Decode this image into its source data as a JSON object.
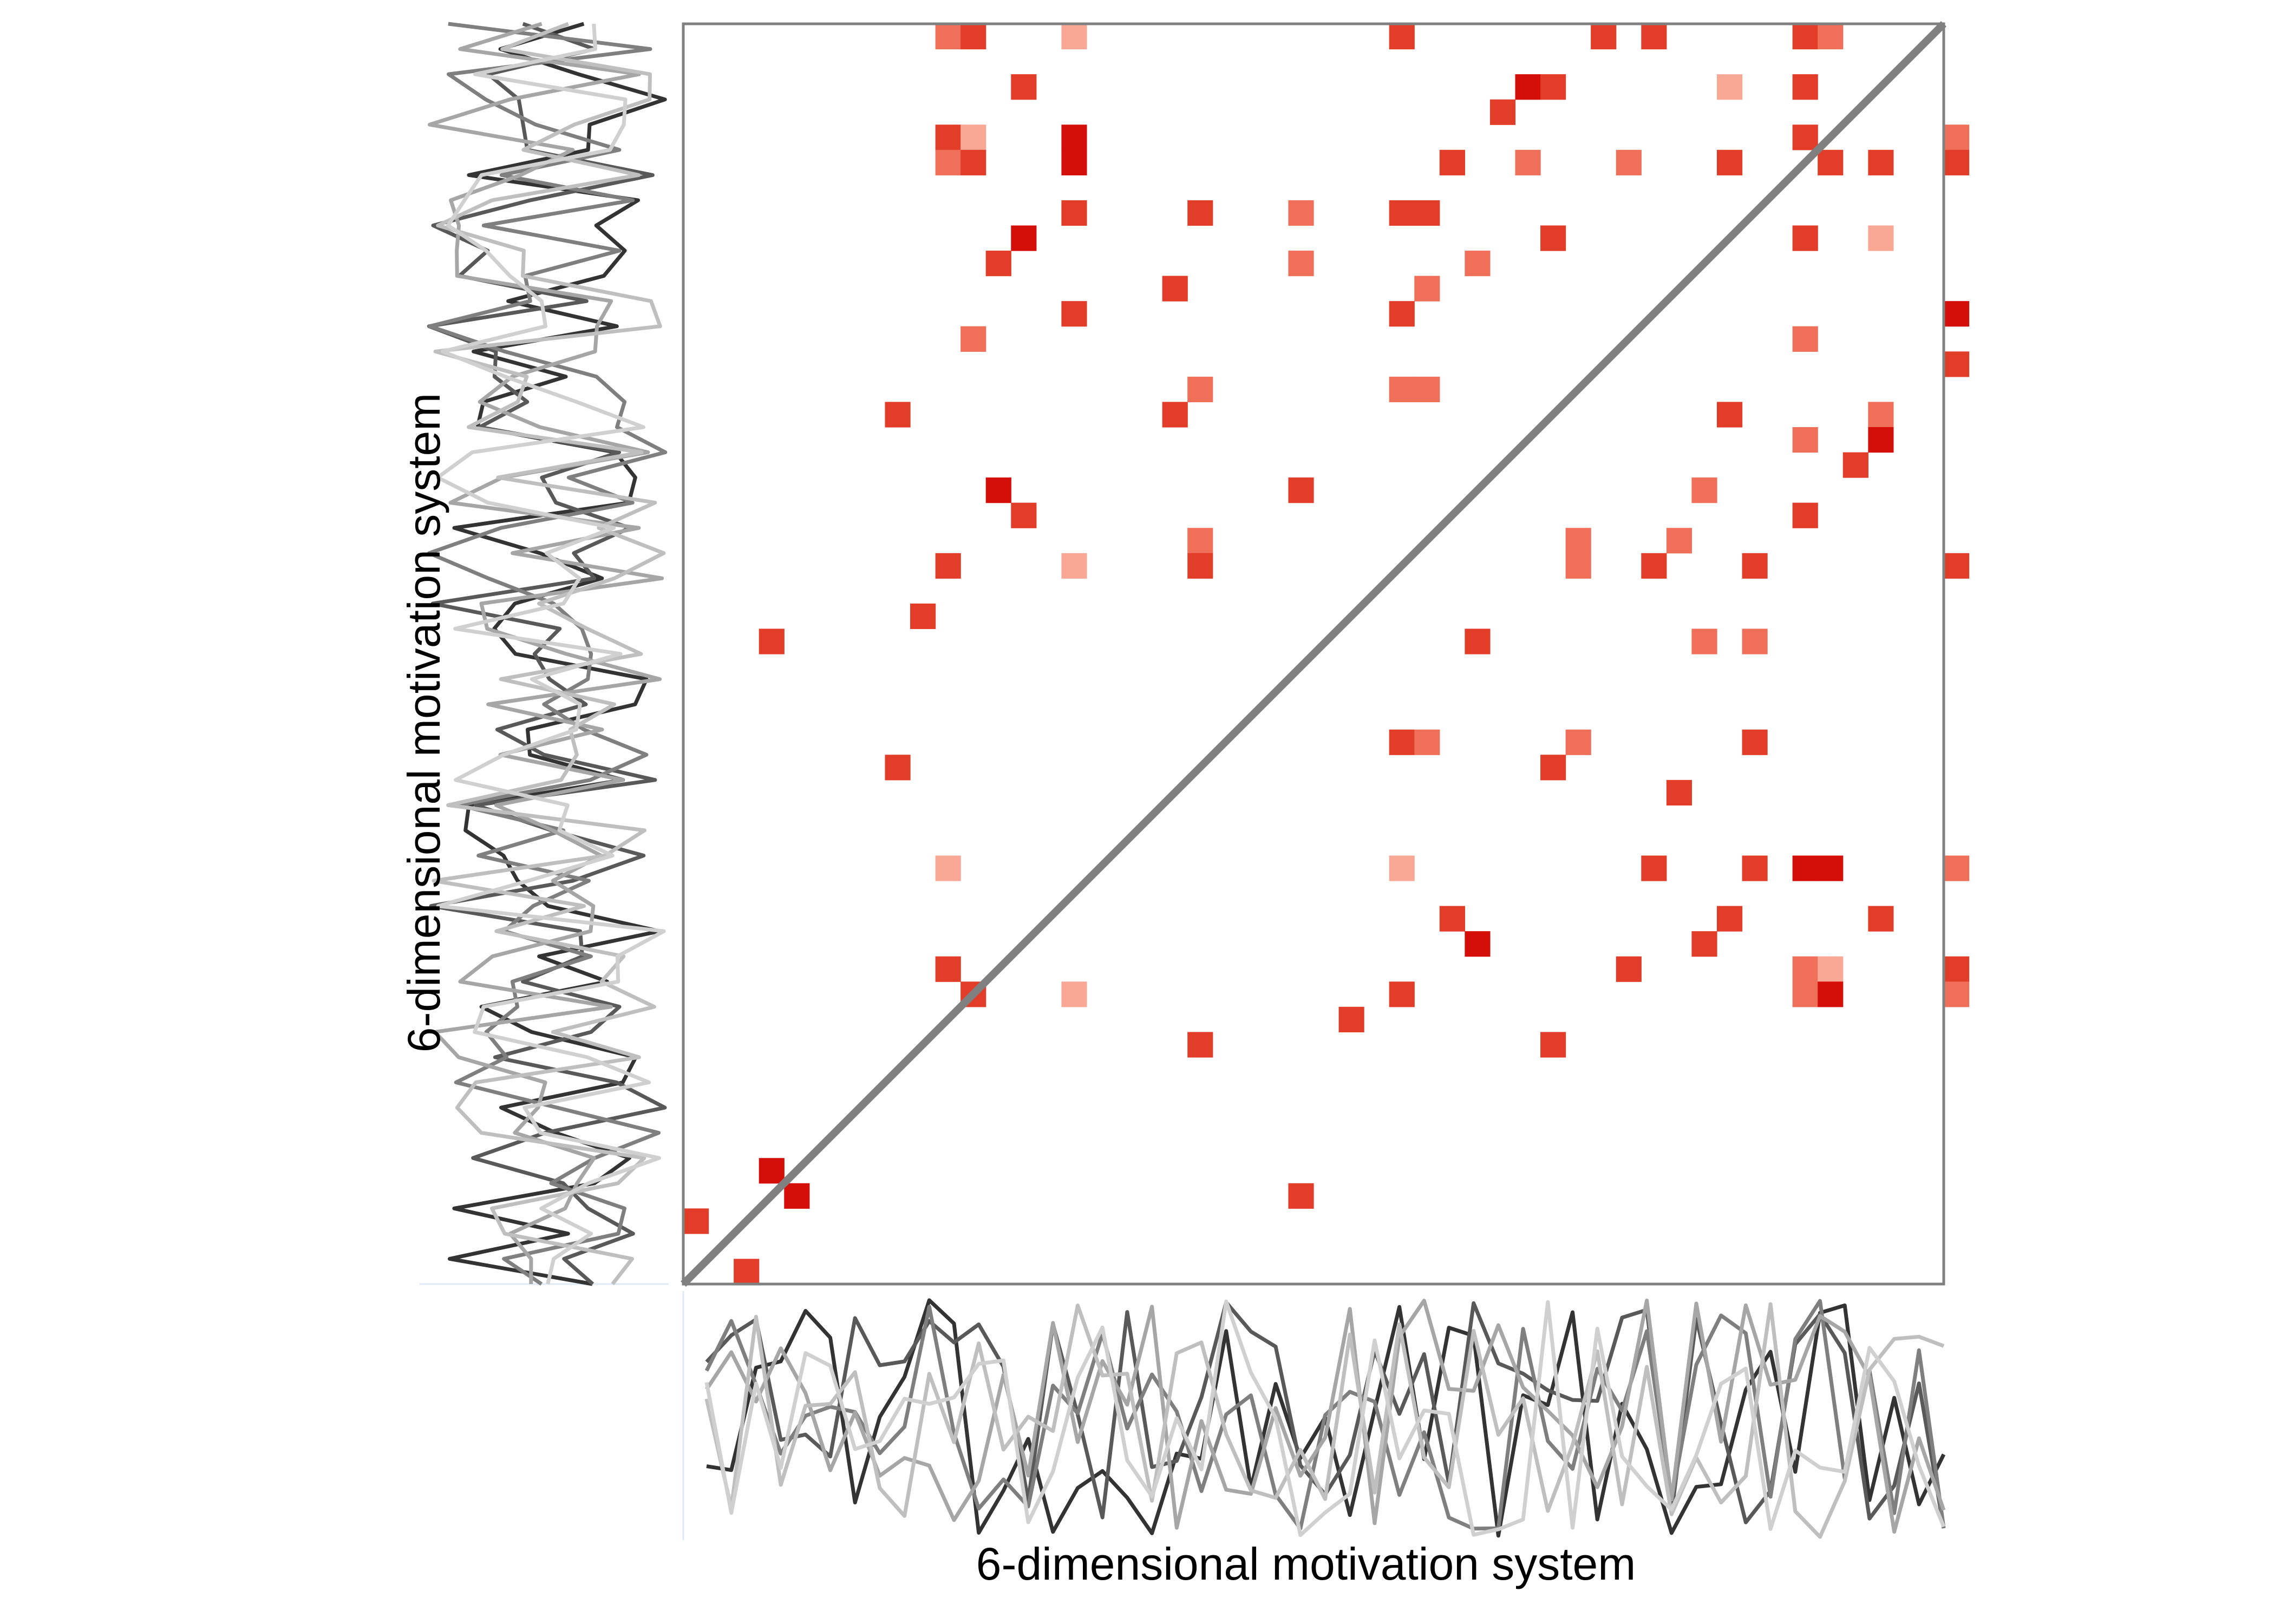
{
  "chart_data": {
    "type": "heatmap",
    "title": "",
    "xlabel": "6-dimensional motivation system",
    "ylabel": "6-dimensional motivation system",
    "grid_size": 50,
    "diagonal_line": true,
    "colors": {
      "diagonal": "#808080",
      "frame": "#808080",
      "cell_scale": [
        "#f9a896",
        "#ef6f58",
        "#e23d29",
        "#d40f0a"
      ],
      "trace_shades": [
        "#333333",
        "#595959",
        "#7f7f7f",
        "#a6a6a6",
        "#bfbfbf",
        "#d0d0d0"
      ]
    },
    "cells": [
      [
        10,
        0,
        2
      ],
      [
        11,
        0,
        3
      ],
      [
        15,
        0,
        1
      ],
      [
        28,
        0,
        3
      ],
      [
        36,
        0,
        3
      ],
      [
        38,
        0,
        3
      ],
      [
        44,
        0,
        3
      ],
      [
        45,
        0,
        2
      ],
      [
        13,
        2,
        3
      ],
      [
        33,
        2,
        4
      ],
      [
        34,
        2,
        3
      ],
      [
        41,
        2,
        1
      ],
      [
        44,
        2,
        3
      ],
      [
        32,
        3,
        3
      ],
      [
        10,
        4,
        3
      ],
      [
        11,
        4,
        1
      ],
      [
        15,
        4,
        4
      ],
      [
        44,
        4,
        3
      ],
      [
        50,
        4,
        2
      ],
      [
        10,
        5,
        2
      ],
      [
        11,
        5,
        3
      ],
      [
        15,
        5,
        4
      ],
      [
        30,
        5,
        3
      ],
      [
        33,
        5,
        2
      ],
      [
        37,
        5,
        2
      ],
      [
        41,
        5,
        3
      ],
      [
        45,
        5,
        3
      ],
      [
        47,
        5,
        3
      ],
      [
        50,
        5,
        3
      ],
      [
        15,
        7,
        3
      ],
      [
        20,
        7,
        3
      ],
      [
        24,
        7,
        2
      ],
      [
        28,
        7,
        3
      ],
      [
        29,
        7,
        3
      ],
      [
        13,
        8,
        4
      ],
      [
        34,
        8,
        3
      ],
      [
        44,
        8,
        3
      ],
      [
        47,
        8,
        1
      ],
      [
        12,
        9,
        3
      ],
      [
        24,
        9,
        2
      ],
      [
        31,
        9,
        2
      ],
      [
        19,
        10,
        3
      ],
      [
        29,
        10,
        2
      ],
      [
        15,
        11,
        3
      ],
      [
        28,
        11,
        3
      ],
      [
        50,
        11,
        4
      ],
      [
        11,
        12,
        2
      ],
      [
        44,
        12,
        2
      ],
      [
        50,
        13,
        3
      ],
      [
        20,
        14,
        2
      ],
      [
        28,
        14,
        2
      ],
      [
        29,
        14,
        2
      ],
      [
        8,
        15,
        3
      ],
      [
        19,
        15,
        3
      ],
      [
        41,
        15,
        3
      ],
      [
        47,
        15,
        2
      ],
      [
        44,
        16,
        2
      ],
      [
        47,
        16,
        4
      ],
      [
        46,
        17,
        3
      ],
      [
        12,
        18,
        4
      ],
      [
        24,
        18,
        3
      ],
      [
        40,
        18,
        2
      ],
      [
        13,
        19,
        3
      ],
      [
        44,
        19,
        3
      ],
      [
        20,
        20,
        2
      ],
      [
        35,
        20,
        2
      ],
      [
        39,
        20,
        2
      ],
      [
        10,
        21,
        3
      ],
      [
        15,
        21,
        1
      ],
      [
        20,
        21,
        3
      ],
      [
        35,
        21,
        2
      ],
      [
        38,
        21,
        3
      ],
      [
        42,
        21,
        3
      ],
      [
        50,
        21,
        3
      ],
      [
        9,
        23,
        3
      ],
      [
        3,
        24,
        3
      ],
      [
        31,
        24,
        3
      ],
      [
        40,
        24,
        2
      ],
      [
        42,
        24,
        2
      ],
      [
        28,
        28,
        3
      ],
      [
        29,
        28,
        2
      ],
      [
        35,
        28,
        2
      ],
      [
        42,
        28,
        3
      ],
      [
        8,
        29,
        3
      ],
      [
        34,
        29,
        3
      ],
      [
        39,
        30,
        3
      ],
      [
        10,
        33,
        1
      ],
      [
        28,
        33,
        1
      ],
      [
        38,
        33,
        3
      ],
      [
        42,
        33,
        3
      ],
      [
        44,
        33,
        4
      ],
      [
        45,
        33,
        4
      ],
      [
        50,
        33,
        2
      ],
      [
        30,
        35,
        3
      ],
      [
        41,
        35,
        3
      ],
      [
        47,
        35,
        3
      ],
      [
        31,
        36,
        4
      ],
      [
        40,
        36,
        3
      ],
      [
        10,
        37,
        3
      ],
      [
        37,
        37,
        3
      ],
      [
        44,
        37,
        2
      ],
      [
        45,
        37,
        1
      ],
      [
        50,
        37,
        3
      ],
      [
        11,
        38,
        3
      ],
      [
        15,
        38,
        1
      ],
      [
        28,
        38,
        3
      ],
      [
        44,
        38,
        2
      ],
      [
        45,
        38,
        4
      ],
      [
        50,
        38,
        2
      ],
      [
        26,
        39,
        3
      ],
      [
        20,
        40,
        3
      ],
      [
        34,
        40,
        3
      ],
      [
        3,
        45,
        4
      ],
      [
        4,
        46,
        4
      ],
      [
        24,
        46,
        3
      ],
      [
        0,
        47,
        3
      ],
      [
        2,
        49,
        3
      ]
    ]
  }
}
